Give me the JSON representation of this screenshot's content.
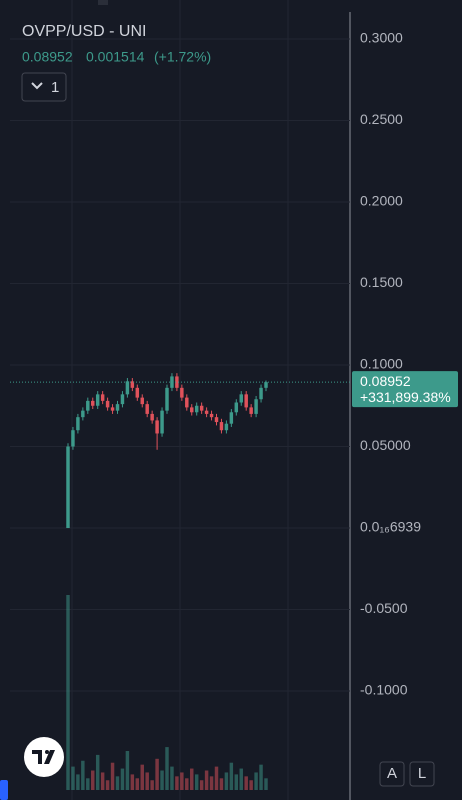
{
  "header": {
    "title": "OVPP/USD - UNI",
    "price": "0.08952",
    "change": "0.001514",
    "change_pct": "(+1.72%)",
    "interval": "1"
  },
  "price_tag": {
    "price": "0.08952",
    "change_pct": "+331,899.38%"
  },
  "buttons": {
    "auto": "A",
    "log": "L"
  },
  "chart_data": {
    "type": "candlestick",
    "up_color": "#3d9a8b",
    "down_color": "#e0525b",
    "ylim": [
      -0.1607,
      0.3239
    ],
    "yticks": [
      {
        "value": 0.3,
        "label": "0.3000"
      },
      {
        "value": 0.25,
        "label": "0.2500"
      },
      {
        "value": 0.2,
        "label": "0.2000"
      },
      {
        "value": 0.15,
        "label": "0.1500"
      },
      {
        "value": 0.1,
        "label": "0.1000"
      },
      {
        "value": 0.05,
        "label": "0.05000"
      },
      {
        "value": 6.939e-17,
        "label": "0.0₁₆6939"
      },
      {
        "value": -0.05,
        "label": "-0.0500"
      },
      {
        "value": -0.1,
        "label": "-0.1000"
      }
    ],
    "grid": true,
    "last_price": 0.08952,
    "open": [
      0.0,
      0.05,
      0.06,
      0.068,
      0.072,
      0.078,
      0.075,
      0.082,
      0.078,
      0.074,
      0.072,
      0.076,
      0.082,
      0.09,
      0.086,
      0.08,
      0.076,
      0.07,
      0.066,
      0.058,
      0.072,
      0.086,
      0.093,
      0.086,
      0.08,
      0.074,
      0.071,
      0.075,
      0.072,
      0.07,
      0.068,
      0.065,
      0.06,
      0.064,
      0.071,
      0.077,
      0.082,
      0.074,
      0.07,
      0.079,
      0.086
    ],
    "high": [
      0.052,
      0.062,
      0.07,
      0.074,
      0.08,
      0.08,
      0.084,
      0.084,
      0.08,
      0.076,
      0.078,
      0.084,
      0.092,
      0.092,
      0.088,
      0.082,
      0.078,
      0.072,
      0.068,
      0.074,
      0.088,
      0.095,
      0.095,
      0.088,
      0.082,
      0.076,
      0.077,
      0.077,
      0.074,
      0.072,
      0.07,
      0.067,
      0.066,
      0.073,
      0.079,
      0.084,
      0.084,
      0.076,
      0.081,
      0.088,
      0.0905
    ],
    "low": [
      0.0,
      0.048,
      0.058,
      0.066,
      0.07,
      0.073,
      0.073,
      0.076,
      0.072,
      0.07,
      0.07,
      0.074,
      0.08,
      0.084,
      0.078,
      0.074,
      0.068,
      0.064,
      0.048,
      0.056,
      0.07,
      0.084,
      0.084,
      0.078,
      0.072,
      0.069,
      0.069,
      0.07,
      0.068,
      0.066,
      0.063,
      0.058,
      0.058,
      0.062,
      0.069,
      0.075,
      0.072,
      0.068,
      0.068,
      0.077,
      0.084
    ],
    "close": [
      0.05,
      0.06,
      0.068,
      0.072,
      0.078,
      0.075,
      0.082,
      0.078,
      0.074,
      0.072,
      0.076,
      0.082,
      0.09,
      0.086,
      0.08,
      0.076,
      0.07,
      0.066,
      0.058,
      0.072,
      0.086,
      0.093,
      0.086,
      0.08,
      0.074,
      0.071,
      0.075,
      0.072,
      0.07,
      0.068,
      0.065,
      0.06,
      0.064,
      0.071,
      0.077,
      0.082,
      0.074,
      0.07,
      0.079,
      0.086,
      0.0895
    ],
    "volume": [
      100,
      12,
      8,
      15,
      6,
      10,
      18,
      9,
      5,
      14,
      7,
      11,
      20,
      8,
      6,
      13,
      9,
      5,
      16,
      10,
      22,
      12,
      7,
      9,
      6,
      11,
      8,
      5,
      10,
      7,
      12,
      6,
      9,
      14,
      8,
      11,
      7,
      5,
      9,
      13,
      6
    ]
  }
}
